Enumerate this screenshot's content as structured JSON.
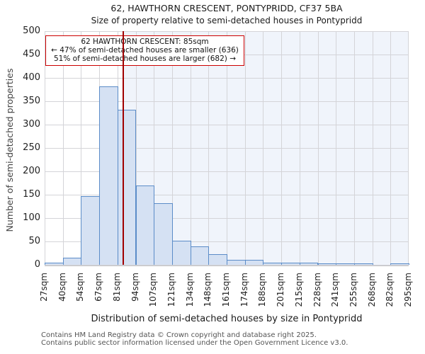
{
  "annotation": {
    "line1": "62 HAWTHORN CRESCENT: 85sqm",
    "line2": "← 47% of semi-detached houses are smaller (636)",
    "line3": "51% of semi-detached houses are larger (682) →"
  },
  "footer": {
    "line1": "Contains HM Land Registry data © Crown copyright and database right 2025.",
    "line2": "Contains public sector information licensed under the Open Government Licence v3.0."
  },
  "colors": {
    "bar_fill": "#d5e1f3",
    "bar_edge": "#5b8cc8",
    "marker_line": "#a00000",
    "annotation_border": "#cc0000",
    "shade_right_of_marker": "#f0f4fb",
    "grid": "#d4d4d8"
  },
  "chart_data": {
    "type": "bar",
    "title": "62, HAWTHORN CRESCENT, PONTYPRIDD, CF37 5BA",
    "subtitle": "Size of property relative to semi-detached houses in Pontypridd",
    "xlabel": "Distribution of semi-detached houses by size in Pontypridd",
    "ylabel": "Number of semi-detached properties",
    "bin_edges_sqm": [
      27,
      40,
      54,
      67,
      81,
      94,
      107,
      121,
      134,
      148,
      161,
      174,
      188,
      201,
      215,
      228,
      241,
      255,
      268,
      282,
      295
    ],
    "x_tick_labels": [
      "27sqm",
      "40sqm",
      "54sqm",
      "67sqm",
      "81sqm",
      "94sqm",
      "107sqm",
      "121sqm",
      "134sqm",
      "148sqm",
      "161sqm",
      "174sqm",
      "188sqm",
      "201sqm",
      "215sqm",
      "228sqm",
      "241sqm",
      "255sqm",
      "268sqm",
      "282sqm",
      "295sqm"
    ],
    "values": [
      5,
      15,
      147,
      382,
      332,
      170,
      132,
      51,
      39,
      22,
      10,
      10,
      4,
      5,
      4,
      3,
      1,
      1,
      0,
      1
    ],
    "ylim": [
      0,
      500
    ],
    "y_ticks": [
      0,
      50,
      100,
      150,
      200,
      250,
      300,
      350,
      400,
      450,
      500
    ],
    "grid": true,
    "legend": "none",
    "marker": {
      "sqm": 85,
      "smaller_pct": 47,
      "smaller_count": 636,
      "larger_pct": 51,
      "larger_count": 682
    }
  }
}
